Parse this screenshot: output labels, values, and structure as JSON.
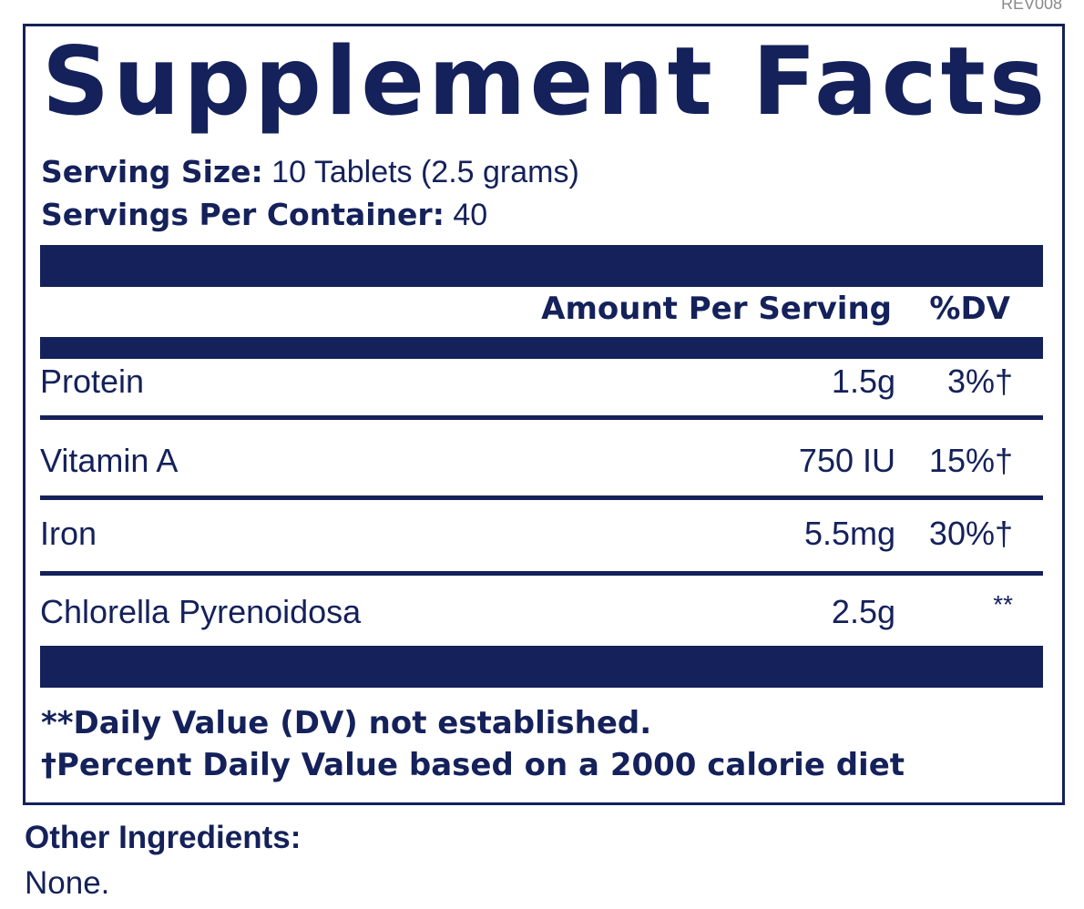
{
  "revision": "REV008",
  "title": "Supplement Facts",
  "serving": {
    "size_label": "Serving Size:",
    "size_value": " 10 Tablets (2.5 grams)",
    "per_container_label": "Servings Per Container:",
    "per_container_value": " 40"
  },
  "table": {
    "amount_header": "Amount Per Serving",
    "dv_header": "%DV",
    "rows": [
      {
        "name": "Protein",
        "amount": "1.5g",
        "dv": "3%†"
      },
      {
        "name": "Vitamin A",
        "amount": "750 IU",
        "dv": "15%†"
      },
      {
        "name": "Iron",
        "amount": "5.5mg",
        "dv": "30%†"
      },
      {
        "name": "Chlorella Pyrenoidosa",
        "amount": "2.5g",
        "dv": "**"
      }
    ]
  },
  "footnotes": {
    "dv_not_established": "**Daily Value (DV) not established.",
    "percent_dv_basis": "†Percent Daily Value based on a 2000 calorie diet"
  },
  "other_ingredients": {
    "label": "Other Ingredients:",
    "value": "None."
  },
  "colors": {
    "navy": "#14215a",
    "background": "#ffffff",
    "revision_gray": "#8a8a8a"
  }
}
